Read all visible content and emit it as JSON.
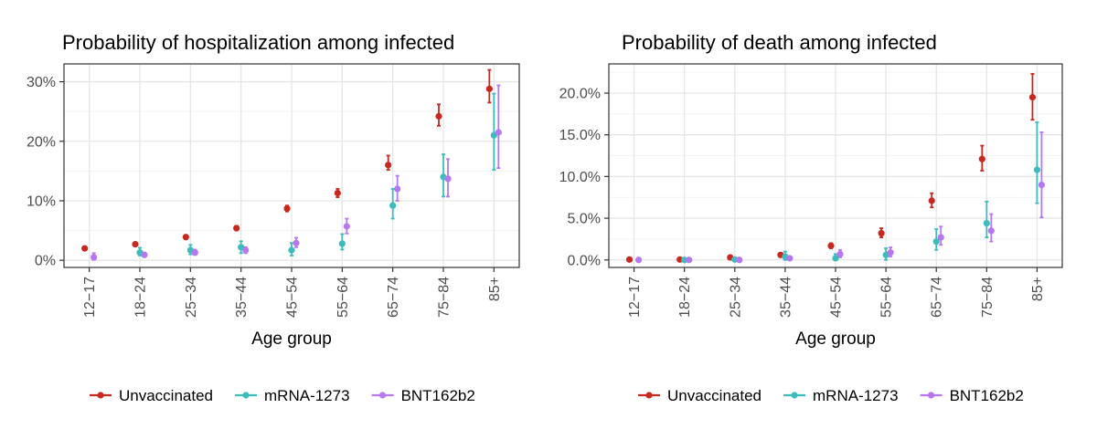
{
  "colors": {
    "Unvaccinated": "#c8281e",
    "mRNA-1273": "#3dbcbc",
    "BNT162b2": "#b877ee",
    "grid_major": "#e6e6e6",
    "grid_minor": "#f3f3f3",
    "panel_border": "#333333"
  },
  "chart_data": [
    {
      "type": "scatter",
      "title": "Probability of hospitalization among infected",
      "xlabel": "Age group",
      "ylabel": "",
      "ylim": [
        -0.012,
        0.33
      ],
      "yticks": [
        0,
        0.1,
        0.2,
        0.3
      ],
      "ytick_labels": [
        "0%",
        "10%",
        "20%",
        "30%"
      ],
      "categories": [
        "12−17",
        "18−24",
        "25−34",
        "35−44",
        "45−54",
        "55−64",
        "65−74",
        "75−84",
        "85+"
      ],
      "series": [
        {
          "name": "Unvaccinated",
          "values": [
            0.02,
            0.027,
            0.039,
            0.054,
            0.087,
            0.113,
            0.16,
            0.242,
            0.288
          ],
          "lower": [
            0.018,
            0.025,
            0.036,
            0.05,
            0.082,
            0.106,
            0.152,
            0.226,
            0.265
          ],
          "upper": [
            0.022,
            0.029,
            0.042,
            0.058,
            0.092,
            0.12,
            0.176,
            0.262,
            0.32
          ]
        },
        {
          "name": "mRNA-1273",
          "values": [
            null,
            0.013,
            0.017,
            0.022,
            0.017,
            0.028,
            0.092,
            0.14,
            0.21
          ],
          "lower": [
            null,
            0.008,
            0.01,
            0.012,
            0.008,
            0.018,
            0.07,
            0.107,
            0.152
          ],
          "upper": [
            null,
            0.021,
            0.026,
            0.032,
            0.029,
            0.044,
            0.12,
            0.178,
            0.28
          ]
        },
        {
          "name": "BNT162b2",
          "values": [
            0.005,
            0.009,
            0.013,
            0.017,
            0.029,
            0.057,
            0.12,
            0.137,
            0.215
          ],
          "lower": [
            0.001,
            0.006,
            0.009,
            0.012,
            0.022,
            0.045,
            0.1,
            0.107,
            0.155
          ],
          "upper": [
            0.012,
            0.013,
            0.018,
            0.022,
            0.038,
            0.07,
            0.142,
            0.17,
            0.294
          ]
        }
      ]
    },
    {
      "type": "scatter",
      "title": "Probability of death among infected",
      "xlabel": "Age group",
      "ylabel": "",
      "ylim": [
        -0.009,
        0.235
      ],
      "yticks": [
        0,
        0.05,
        0.1,
        0.15,
        0.2
      ],
      "ytick_labels": [
        "0.0%",
        "5.0%",
        "10.0%",
        "15.0%",
        "20.0%"
      ],
      "categories": [
        "12−17",
        "18−24",
        "25−34",
        "35−44",
        "45−54",
        "55−64",
        "65−74",
        "75−84",
        "85+"
      ],
      "series": [
        {
          "name": "Unvaccinated",
          "values": [
            0.0005,
            0.0005,
            0.003,
            0.006,
            0.017,
            0.032,
            0.071,
            0.121,
            0.195
          ],
          "lower": [
            0.0,
            0.0,
            0.002,
            0.004,
            0.014,
            0.027,
            0.063,
            0.107,
            0.168
          ],
          "upper": [
            0.001,
            0.001,
            0.004,
            0.008,
            0.02,
            0.038,
            0.08,
            0.137,
            0.223
          ]
        },
        {
          "name": "mRNA-1273",
          "values": [
            null,
            0.0,
            0.0005,
            0.004,
            0.002,
            0.006,
            0.022,
            0.044,
            0.108
          ],
          "lower": [
            null,
            0.0,
            0.0,
            0.0,
            0.0,
            0.0,
            0.012,
            0.027,
            0.068
          ],
          "upper": [
            null,
            0.001,
            0.001,
            0.01,
            0.007,
            0.014,
            0.037,
            0.07,
            0.165
          ]
        },
        {
          "name": "BNT162b2",
          "values": [
            0.0,
            0.0,
            0.0,
            0.002,
            0.007,
            0.009,
            0.027,
            0.035,
            0.09
          ],
          "lower": [
            0.0,
            0.0,
            0.0,
            0.0,
            0.003,
            0.004,
            0.018,
            0.022,
            0.051
          ],
          "upper": [
            0.0005,
            0.0005,
            0.0005,
            0.004,
            0.012,
            0.015,
            0.04,
            0.055,
            0.153
          ]
        }
      ]
    }
  ],
  "legend": {
    "placement": "bottom",
    "items": [
      "Unvaccinated",
      "mRNA-1273",
      "BNT162b2"
    ]
  }
}
